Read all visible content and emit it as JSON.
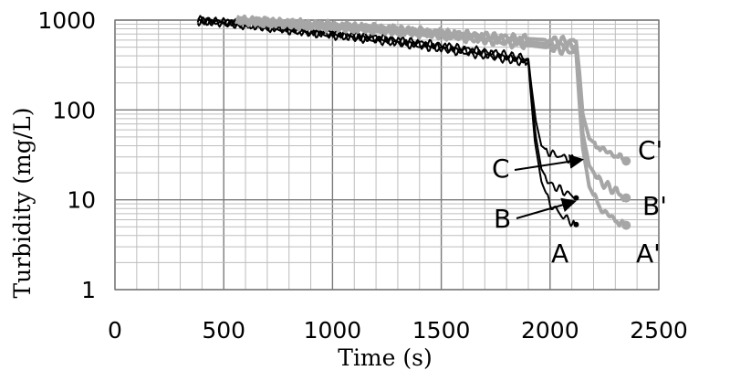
{
  "chart_data": {
    "type": "line",
    "xlabel": "Time (s)",
    "ylabel": "Turbidity (mg/L)",
    "y_scale": "log",
    "xlim": [
      0,
      2500
    ],
    "ylim": [
      1,
      1000
    ],
    "x_ticks": [
      "0",
      "500",
      "1000",
      "1500",
      "2000",
      "2500"
    ],
    "y_ticks": [
      "1",
      "10",
      "100",
      "1000"
    ],
    "grid": true,
    "colors": {
      "black_series": "#000000",
      "grey_series": "#a6a6a6"
    },
    "series": [
      {
        "name": "A",
        "color": "#000000",
        "points": [
          [
            380,
            980
          ],
          [
            600,
            880
          ],
          [
            900,
            720
          ],
          [
            1200,
            600
          ],
          [
            1500,
            480
          ],
          [
            1800,
            370
          ],
          [
            1900,
            330
          ],
          [
            1915,
            120
          ],
          [
            1930,
            45
          ],
          [
            1960,
            16
          ],
          [
            2000,
            9
          ],
          [
            2060,
            6.5
          ],
          [
            2120,
            5.3
          ]
        ]
      },
      {
        "name": "B",
        "color": "#000000",
        "points": [
          [
            380,
            990
          ],
          [
            600,
            900
          ],
          [
            900,
            740
          ],
          [
            1200,
            620
          ],
          [
            1500,
            500
          ],
          [
            1800,
            390
          ],
          [
            1900,
            350
          ],
          [
            1915,
            140
          ],
          [
            1935,
            50
          ],
          [
            1960,
            22
          ],
          [
            2000,
            15
          ],
          [
            2060,
            12.5
          ],
          [
            2120,
            10.5
          ]
        ]
      },
      {
        "name": "C",
        "color": "#000000",
        "points": [
          [
            380,
            1000
          ],
          [
            600,
            920
          ],
          [
            900,
            760
          ],
          [
            1200,
            640
          ],
          [
            1500,
            520
          ],
          [
            1800,
            410
          ],
          [
            1900,
            370
          ],
          [
            1915,
            180
          ],
          [
            1935,
            75
          ],
          [
            1960,
            40
          ],
          [
            2000,
            33
          ],
          [
            2060,
            30
          ],
          [
            2120,
            27
          ]
        ]
      },
      {
        "name": "A'",
        "color": "#a6a6a6",
        "points": [
          [
            560,
            990
          ],
          [
            900,
            860
          ],
          [
            1200,
            780
          ],
          [
            1500,
            680
          ],
          [
            1800,
            560
          ],
          [
            2000,
            490
          ],
          [
            2120,
            440
          ],
          [
            2135,
            120
          ],
          [
            2150,
            38
          ],
          [
            2180,
            14
          ],
          [
            2230,
            8
          ],
          [
            2300,
            6
          ],
          [
            2350,
            5.2
          ]
        ]
      },
      {
        "name": "B'",
        "color": "#a6a6a6",
        "points": [
          [
            560,
            1000
          ],
          [
            900,
            880
          ],
          [
            1200,
            800
          ],
          [
            1500,
            700
          ],
          [
            1800,
            600
          ],
          [
            2000,
            540
          ],
          [
            2120,
            510
          ],
          [
            2135,
            170
          ],
          [
            2150,
            55
          ],
          [
            2180,
            24
          ],
          [
            2230,
            16
          ],
          [
            2300,
            12.5
          ],
          [
            2350,
            10.5
          ]
        ]
      },
      {
        "name": "C'",
        "color": "#a6a6a6",
        "points": [
          [
            560,
            1000
          ],
          [
            900,
            900
          ],
          [
            1200,
            820
          ],
          [
            1500,
            720
          ],
          [
            1800,
            640
          ],
          [
            2000,
            600
          ],
          [
            2120,
            580
          ],
          [
            2135,
            260
          ],
          [
            2150,
            90
          ],
          [
            2180,
            48
          ],
          [
            2230,
            38
          ],
          [
            2300,
            31
          ],
          [
            2350,
            27
          ]
        ]
      }
    ],
    "annotations": [
      "C",
      "B",
      "A",
      "C'",
      "B'",
      "A'"
    ]
  }
}
